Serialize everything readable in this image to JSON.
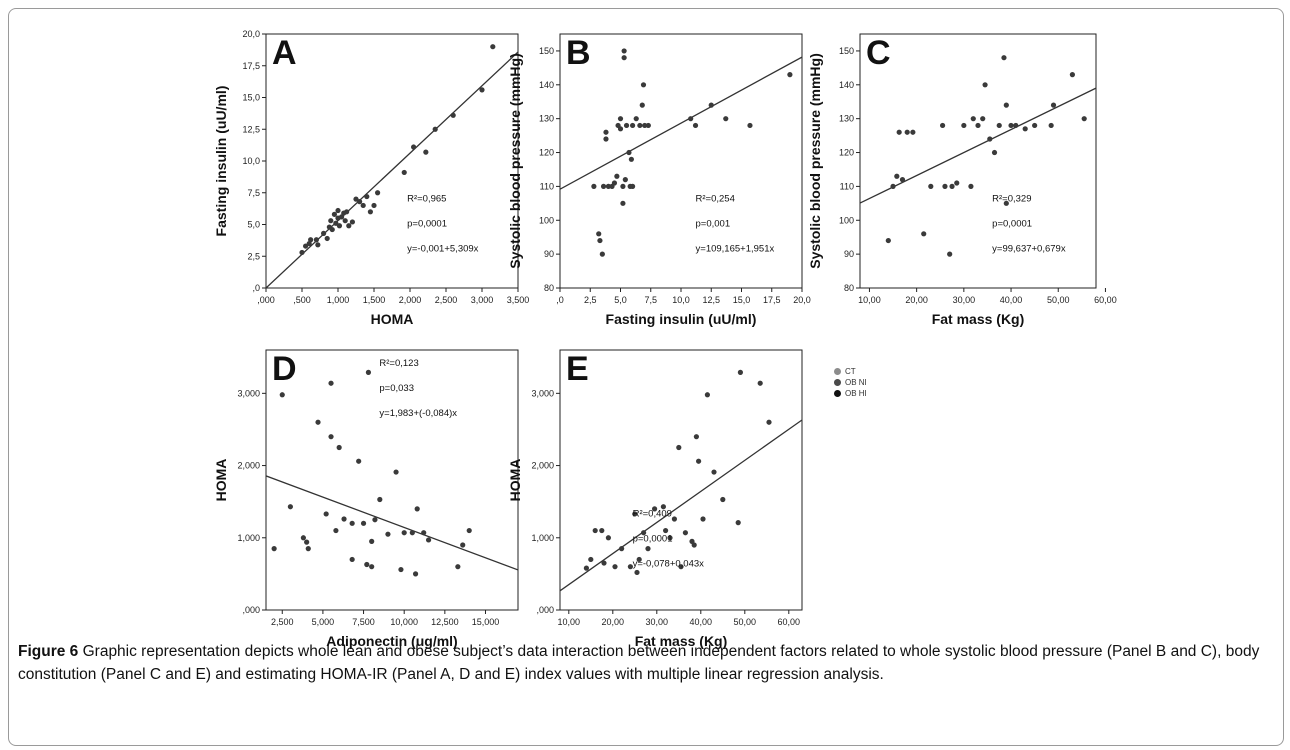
{
  "legend": [
    {
      "label": "CT",
      "color": "#8c8c8c"
    },
    {
      "label": "OB NI",
      "color": "#4a4a4a"
    },
    {
      "label": "OB HI",
      "color": "#111111"
    }
  ],
  "caption": {
    "bold": "Figure 6",
    "text": " Graphic representation depicts whole lean and obese subject’s data interaction between independent factors related to whole systolic blood pressure (Panel B and C), body constitution (Panel C and E) and estimating HOMA-IR (Panel A, D and E) index values with multiple linear regression analysis."
  },
  "chart_data": [
    {
      "type": "scatter",
      "panel_label": "A",
      "xlabel": "HOMA",
      "ylabel": "Fasting insulin (uU/ml)",
      "xlim": [
        0,
        3.5
      ],
      "ylim": [
        0,
        20
      ],
      "xticks": [
        0,
        0.5,
        1,
        1.5,
        2,
        2.5,
        3,
        3.5
      ],
      "xtick_labels": [
        ",000",
        ",500",
        "1,000",
        "1,500",
        "2,000",
        "2,500",
        "3,000",
        "3,500"
      ],
      "yticks": [
        0,
        2.5,
        5,
        7.5,
        10,
        12.5,
        15,
        17.5,
        20
      ],
      "ytick_labels": [
        ",0",
        "2,5",
        "5,0",
        "7,5",
        "10,0",
        "12,5",
        "15,0",
        "17,5",
        "20,0"
      ],
      "fit_line": {
        "intercept": -0.001,
        "slope": 5.309
      },
      "annotations": [
        "R²=0,965",
        "p=0,0001",
        "y=-0,001+5,309x"
      ],
      "points": [
        {
          "x": 0.5,
          "y": 2.8
        },
        {
          "x": 0.55,
          "y": 3.3
        },
        {
          "x": 0.6,
          "y": 3.5
        },
        {
          "x": 0.62,
          "y": 3.8
        },
        {
          "x": 0.7,
          "y": 3.8
        },
        {
          "x": 0.72,
          "y": 3.4
        },
        {
          "x": 0.8,
          "y": 4.3
        },
        {
          "x": 0.85,
          "y": 3.9
        },
        {
          "x": 0.88,
          "y": 4.8
        },
        {
          "x": 0.9,
          "y": 5.3
        },
        {
          "x": 0.92,
          "y": 4.6
        },
        {
          "x": 0.95,
          "y": 5.8
        },
        {
          "x": 0.97,
          "y": 5.1
        },
        {
          "x": 1.0,
          "y": 5.5
        },
        {
          "x": 1.0,
          "y": 6.1
        },
        {
          "x": 1.02,
          "y": 4.9
        },
        {
          "x": 1.05,
          "y": 5.6
        },
        {
          "x": 1.08,
          "y": 5.9
        },
        {
          "x": 1.1,
          "y": 5.3
        },
        {
          "x": 1.12,
          "y": 6.0
        },
        {
          "x": 1.15,
          "y": 4.9
        },
        {
          "x": 1.2,
          "y": 5.2
        },
        {
          "x": 1.25,
          "y": 7.0
        },
        {
          "x": 1.3,
          "y": 6.8
        },
        {
          "x": 1.35,
          "y": 6.5
        },
        {
          "x": 1.4,
          "y": 7.2
        },
        {
          "x": 1.45,
          "y": 6.0
        },
        {
          "x": 1.5,
          "y": 6.5
        },
        {
          "x": 1.55,
          "y": 7.5
        },
        {
          "x": 1.92,
          "y": 9.1
        },
        {
          "x": 2.05,
          "y": 11.1
        },
        {
          "x": 2.22,
          "y": 10.7
        },
        {
          "x": 2.35,
          "y": 12.5
        },
        {
          "x": 2.6,
          "y": 13.6
        },
        {
          "x": 3.0,
          "y": 15.6
        },
        {
          "x": 3.15,
          "y": 19.0
        }
      ]
    },
    {
      "type": "scatter",
      "panel_label": "B",
      "xlabel": "Fasting insulin (uU/ml)",
      "ylabel": "Systolic blood pressure (mmHg)",
      "xlim": [
        0,
        20
      ],
      "ylim": [
        80,
        155
      ],
      "xticks": [
        0,
        2.5,
        5,
        7.5,
        10,
        12.5,
        15,
        17.5,
        20
      ],
      "xtick_labels": [
        ",0",
        "2,5",
        "5,0",
        "7,5",
        "10,0",
        "12,5",
        "15,0",
        "17,5",
        "20,0"
      ],
      "yticks": [
        80,
        90,
        100,
        110,
        120,
        130,
        140,
        150
      ],
      "ytick_labels": [
        "80",
        "90",
        "100",
        "110",
        "120",
        "130",
        "140",
        "150"
      ],
      "fit_line": {
        "intercept": 109.165,
        "slope": 1.951
      },
      "annotations": [
        "R²=0,254",
        "p=0,001",
        "y=109,165+1,951x"
      ],
      "points": [
        {
          "x": 2.8,
          "y": 110
        },
        {
          "x": 3.2,
          "y": 96
        },
        {
          "x": 3.3,
          "y": 94
        },
        {
          "x": 3.5,
          "y": 90
        },
        {
          "x": 3.6,
          "y": 110
        },
        {
          "x": 3.8,
          "y": 126
        },
        {
          "x": 3.8,
          "y": 124
        },
        {
          "x": 4.0,
          "y": 110
        },
        {
          "x": 4.3,
          "y": 110
        },
        {
          "x": 4.5,
          "y": 111
        },
        {
          "x": 4.7,
          "y": 113
        },
        {
          "x": 4.8,
          "y": 128
        },
        {
          "x": 5.0,
          "y": 130
        },
        {
          "x": 5.0,
          "y": 127
        },
        {
          "x": 5.2,
          "y": 105
        },
        {
          "x": 5.2,
          "y": 110
        },
        {
          "x": 5.3,
          "y": 148
        },
        {
          "x": 5.3,
          "y": 150
        },
        {
          "x": 5.4,
          "y": 112
        },
        {
          "x": 5.5,
          "y": 128
        },
        {
          "x": 5.7,
          "y": 120
        },
        {
          "x": 5.8,
          "y": 110
        },
        {
          "x": 5.9,
          "y": 118
        },
        {
          "x": 6.0,
          "y": 110
        },
        {
          "x": 6.0,
          "y": 128
        },
        {
          "x": 6.3,
          "y": 130
        },
        {
          "x": 6.6,
          "y": 128
        },
        {
          "x": 6.8,
          "y": 134
        },
        {
          "x": 6.9,
          "y": 140
        },
        {
          "x": 7.0,
          "y": 128
        },
        {
          "x": 7.3,
          "y": 128
        },
        {
          "x": 10.8,
          "y": 130
        },
        {
          "x": 11.2,
          "y": 128
        },
        {
          "x": 12.5,
          "y": 134
        },
        {
          "x": 13.7,
          "y": 130
        },
        {
          "x": 15.7,
          "y": 128
        },
        {
          "x": 19.0,
          "y": 143
        }
      ]
    },
    {
      "type": "scatter",
      "panel_label": "C",
      "xlabel": "Fat mass (Kg)",
      "ylabel": "Systolic blood pressure (mmHg)",
      "xlim": [
        8,
        58
      ],
      "ylim": [
        80,
        155
      ],
      "xticks": [
        10,
        20,
        30,
        40,
        50,
        60
      ],
      "xtick_labels": [
        "10,00",
        "20,00",
        "30,00",
        "40,00",
        "50,00",
        "60,00"
      ],
      "yticks": [
        80,
        90,
        100,
        110,
        120,
        130,
        140,
        150
      ],
      "ytick_labels": [
        "80",
        "90",
        "100",
        "110",
        "120",
        "130",
        "140",
        "150"
      ],
      "fit_line": {
        "intercept": 99.637,
        "slope": 0.679
      },
      "annotations": [
        "R²=0,329",
        "p=0,0001",
        "y=99,637+0,679x"
      ],
      "points": [
        {
          "x": 14.0,
          "y": 94
        },
        {
          "x": 15.0,
          "y": 110
        },
        {
          "x": 15.8,
          "y": 113
        },
        {
          "x": 16.3,
          "y": 126
        },
        {
          "x": 17.0,
          "y": 112
        },
        {
          "x": 18.0,
          "y": 126
        },
        {
          "x": 19.2,
          "y": 126
        },
        {
          "x": 21.5,
          "y": 96
        },
        {
          "x": 23.0,
          "y": 110
        },
        {
          "x": 25.5,
          "y": 128
        },
        {
          "x": 26.0,
          "y": 110
        },
        {
          "x": 27.0,
          "y": 90
        },
        {
          "x": 27.5,
          "y": 110
        },
        {
          "x": 28.5,
          "y": 111
        },
        {
          "x": 30.0,
          "y": 128
        },
        {
          "x": 31.5,
          "y": 110
        },
        {
          "x": 32.0,
          "y": 130
        },
        {
          "x": 33.0,
          "y": 128
        },
        {
          "x": 34.0,
          "y": 130
        },
        {
          "x": 34.5,
          "y": 140
        },
        {
          "x": 35.5,
          "y": 124
        },
        {
          "x": 36.5,
          "y": 120
        },
        {
          "x": 37.5,
          "y": 128
        },
        {
          "x": 38.5,
          "y": 148
        },
        {
          "x": 39.0,
          "y": 134
        },
        {
          "x": 39.0,
          "y": 105
        },
        {
          "x": 40.0,
          "y": 128
        },
        {
          "x": 41.0,
          "y": 128
        },
        {
          "x": 43.0,
          "y": 127
        },
        {
          "x": 45.0,
          "y": 128
        },
        {
          "x": 48.5,
          "y": 128
        },
        {
          "x": 49.0,
          "y": 134
        },
        {
          "x": 53.0,
          "y": 143
        },
        {
          "x": 55.5,
          "y": 130
        }
      ]
    },
    {
      "type": "scatter",
      "panel_label": "D",
      "xlabel": "Adiponectin (ug/ml)",
      "ylabel": "HOMA",
      "xlim": [
        1.5,
        17
      ],
      "ylim": [
        0,
        3.6
      ],
      "xticks": [
        2.5,
        5,
        7.5,
        10,
        12.5,
        15
      ],
      "xtick_labels": [
        "2,500",
        "5,000",
        "7,500",
        "10,000",
        "12,500",
        "15,000"
      ],
      "yticks": [
        0,
        1,
        2,
        3
      ],
      "ytick_labels": [
        ",000",
        "1,000",
        "2,000",
        "3,000"
      ],
      "fit_line": {
        "intercept": 1.983,
        "slope": -0.084
      },
      "annotations": [
        "R²=0,123",
        "p=0,033",
        "y=1,983+(-0,084)x"
      ],
      "points": [
        {
          "x": 2.0,
          "y": 0.85
        },
        {
          "x": 2.5,
          "y": 2.98
        },
        {
          "x": 3.0,
          "y": 1.43
        },
        {
          "x": 3.8,
          "y": 1.0
        },
        {
          "x": 4.0,
          "y": 0.94
        },
        {
          "x": 4.1,
          "y": 0.85
        },
        {
          "x": 4.7,
          "y": 2.6
        },
        {
          "x": 5.2,
          "y": 1.33
        },
        {
          "x": 5.5,
          "y": 2.4
        },
        {
          "x": 5.5,
          "y": 3.14
        },
        {
          "x": 5.8,
          "y": 1.1
        },
        {
          "x": 6.0,
          "y": 2.25
        },
        {
          "x": 6.3,
          "y": 1.26
        },
        {
          "x": 6.8,
          "y": 0.7
        },
        {
          "x": 6.8,
          "y": 1.2
        },
        {
          "x": 7.2,
          "y": 2.06
        },
        {
          "x": 7.5,
          "y": 1.2
        },
        {
          "x": 7.7,
          "y": 0.63
        },
        {
          "x": 7.8,
          "y": 3.29
        },
        {
          "x": 8.0,
          "y": 0.95
        },
        {
          "x": 8.0,
          "y": 0.6
        },
        {
          "x": 8.2,
          "y": 1.25
        },
        {
          "x": 8.5,
          "y": 1.53
        },
        {
          "x": 9.0,
          "y": 1.05
        },
        {
          "x": 9.5,
          "y": 1.91
        },
        {
          "x": 9.8,
          "y": 0.56
        },
        {
          "x": 10.0,
          "y": 1.07
        },
        {
          "x": 10.5,
          "y": 1.07
        },
        {
          "x": 10.7,
          "y": 0.5
        },
        {
          "x": 10.8,
          "y": 1.4
        },
        {
          "x": 11.2,
          "y": 1.07
        },
        {
          "x": 11.5,
          "y": 0.97
        },
        {
          "x": 13.3,
          "y": 0.6
        },
        {
          "x": 13.6,
          "y": 0.9
        },
        {
          "x": 14.0,
          "y": 1.1
        }
      ]
    },
    {
      "type": "scatter",
      "panel_label": "E",
      "xlabel": "Fat mass (Kg)",
      "ylabel": "HOMA",
      "xlim": [
        8,
        63
      ],
      "ylim": [
        0,
        3.6
      ],
      "xticks": [
        10,
        20,
        30,
        40,
        50,
        60
      ],
      "xtick_labels": [
        "10,00",
        "20,00",
        "30,00",
        "40,00",
        "50,00",
        "60,00"
      ],
      "yticks": [
        0,
        1,
        2,
        3
      ],
      "ytick_labels": [
        ",000",
        "1,000",
        "2,000",
        "3,000"
      ],
      "fit_line": {
        "intercept": -0.078,
        "slope": 0.043
      },
      "annotations": [
        "R²=0,409",
        "p=0,0001",
        "y=-0,078+0,043x"
      ],
      "points": [
        {
          "x": 14.0,
          "y": 0.58
        },
        {
          "x": 15.0,
          "y": 0.7
        },
        {
          "x": 16.0,
          "y": 1.1
        },
        {
          "x": 17.5,
          "y": 1.1
        },
        {
          "x": 18.0,
          "y": 0.65
        },
        {
          "x": 19.0,
          "y": 1.0
        },
        {
          "x": 20.5,
          "y": 0.6
        },
        {
          "x": 22.0,
          "y": 0.85
        },
        {
          "x": 24.0,
          "y": 0.6
        },
        {
          "x": 25.0,
          "y": 1.33
        },
        {
          "x": 25.5,
          "y": 0.52
        },
        {
          "x": 26.0,
          "y": 0.7
        },
        {
          "x": 27.0,
          "y": 1.07
        },
        {
          "x": 28.0,
          "y": 0.85
        },
        {
          "x": 29.5,
          "y": 1.4
        },
        {
          "x": 31.5,
          "y": 1.43
        },
        {
          "x": 32.0,
          "y": 1.1
        },
        {
          "x": 33.0,
          "y": 1.0
        },
        {
          "x": 34.0,
          "y": 1.26
        },
        {
          "x": 35.0,
          "y": 2.25
        },
        {
          "x": 35.5,
          "y": 0.6
        },
        {
          "x": 36.5,
          "y": 1.07
        },
        {
          "x": 38.0,
          "y": 0.95
        },
        {
          "x": 38.5,
          "y": 0.9
        },
        {
          "x": 39.0,
          "y": 2.4
        },
        {
          "x": 39.5,
          "y": 2.06
        },
        {
          "x": 40.5,
          "y": 1.26
        },
        {
          "x": 41.5,
          "y": 2.98
        },
        {
          "x": 43.0,
          "y": 1.91
        },
        {
          "x": 45.0,
          "y": 1.53
        },
        {
          "x": 48.5,
          "y": 1.21
        },
        {
          "x": 49.0,
          "y": 3.29
        },
        {
          "x": 53.5,
          "y": 3.14
        },
        {
          "x": 55.5,
          "y": 2.6
        }
      ]
    }
  ]
}
